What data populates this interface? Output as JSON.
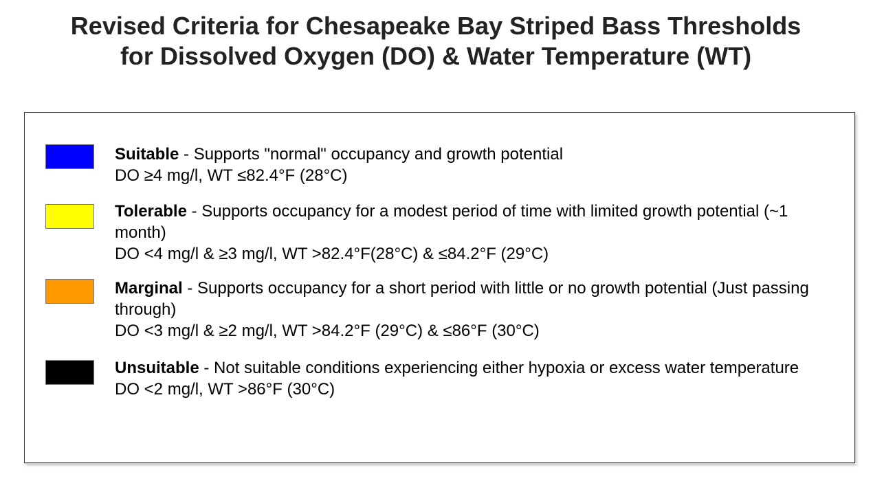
{
  "title": {
    "line1": "Revised Criteria for Chesapeake Bay Striped Bass Thresholds",
    "line2": "for Dissolved Oxygen (DO) & Water Temperature (WT)"
  },
  "items": [
    {
      "label": "Suitable",
      "description": " - Supports \"normal\" occupancy and growth potential",
      "criteria": "DO ≥4 mg/l, WT ≤82.4°F (28°C)",
      "color": "#0000ff"
    },
    {
      "label": "Tolerable",
      "description": " - Supports occupancy for a modest period of time with limited growth potential (~1 month)",
      "criteria": "DO <4 mg/l & ≥3 mg/l, WT >82.4°F(28°C) & ≤84.2°F (29°C)",
      "color": "#ffff00"
    },
    {
      "label": "Marginal",
      "description": " - Supports occupancy for a short period with little or no growth potential (Just passing through)",
      "criteria": "DO <3 mg/l & ≥2 mg/l, WT >84.2°F (29°C) & ≤86°F (30°C)",
      "color": "#ff9900"
    },
    {
      "label": "Unsuitable",
      "description": " - Not suitable conditions experiencing either hypoxia or excess water temperature",
      "criteria": "DO <2 mg/l, WT >86°F (30°C)",
      "color": "#000000"
    }
  ]
}
